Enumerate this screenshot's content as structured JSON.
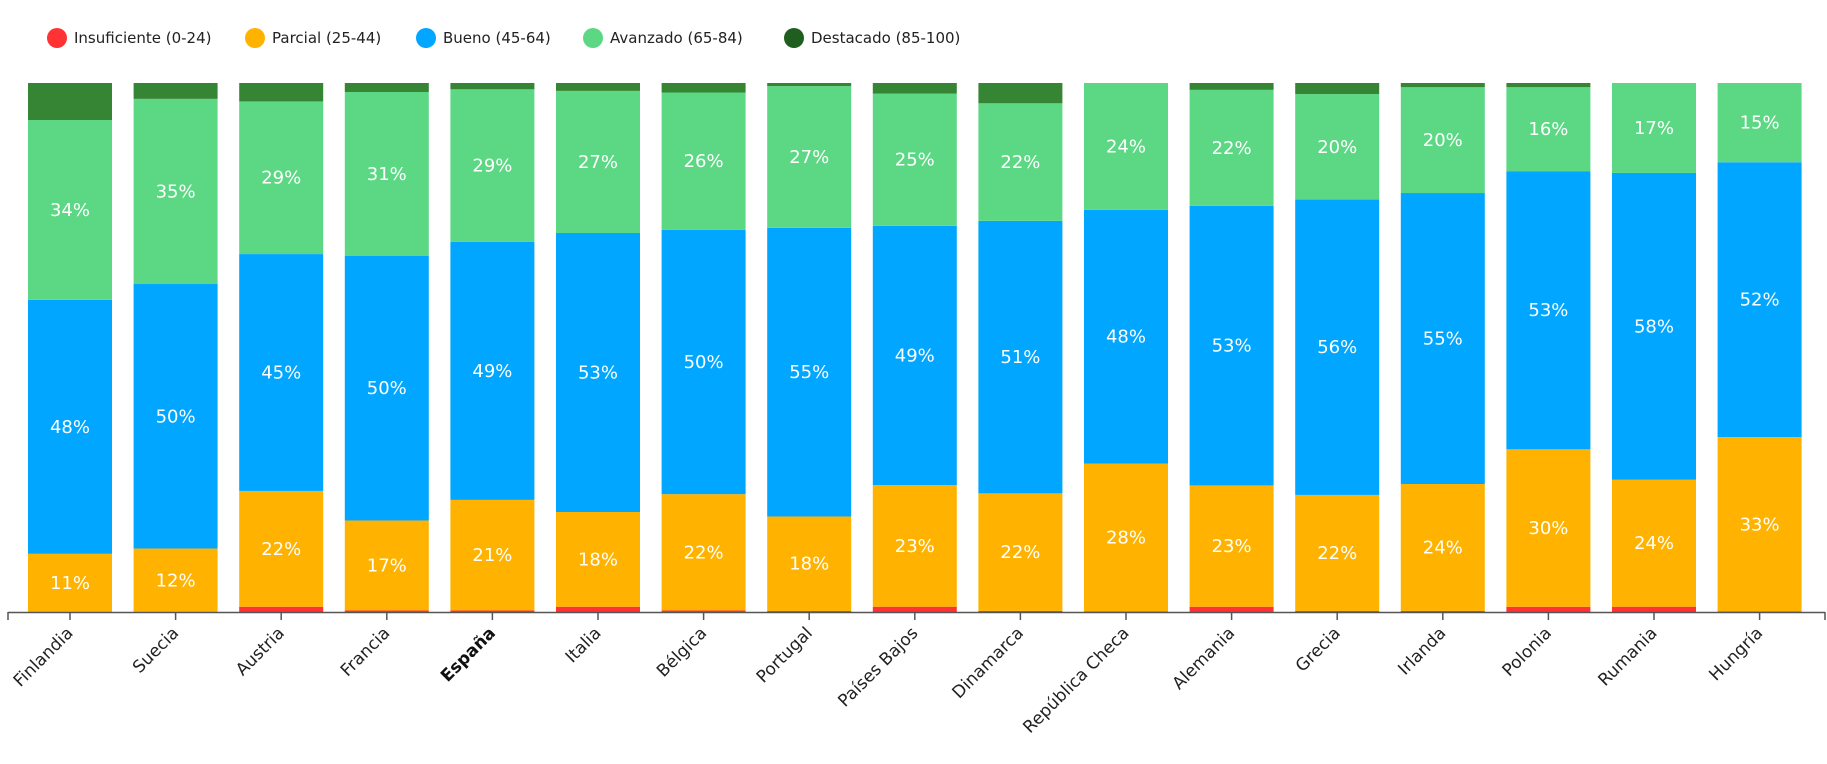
{
  "chart_data": {
    "type": "bar",
    "stacked": true,
    "normalized": true,
    "title": "",
    "xlabel": "",
    "ylabel": "",
    "ylim": [
      0,
      100
    ],
    "grid": false,
    "legend_position": "top-left",
    "highlighted_category": "España",
    "categories": [
      "Finlandia",
      "Suecia",
      "Austria",
      "Francia",
      "España",
      "Italia",
      "Bélgica",
      "Portugal",
      "Países Bajos",
      "Dinamarca",
      "República Checa",
      "Alemania",
      "Grecia",
      "Irlanda",
      "Polonia",
      "Rumania",
      "Hungría"
    ],
    "series": [
      {
        "name": "Insuficiente (0-24)",
        "color": "#ff3333",
        "values": [
          0,
          0,
          1,
          0.3,
          0.3,
          1,
          0.3,
          0.2,
          1,
          0.2,
          0.1,
          1,
          0.2,
          0.2,
          1,
          1,
          0.1
        ],
        "labels": [
          "",
          "",
          "",
          "",
          "",
          "",
          "",
          "",
          "",
          "",
          "",
          "",
          "",
          "",
          "",
          "",
          ""
        ]
      },
      {
        "name": "Parcial (25-44)",
        "color": "#ffb300",
        "values": [
          11,
          12,
          22,
          17,
          21,
          18,
          22,
          18,
          23,
          22,
          28,
          23,
          22,
          24,
          30,
          24,
          33
        ],
        "labels": [
          "11%",
          "12%",
          "22%",
          "17%",
          "21%",
          "18%",
          "22%",
          "18%",
          "23%",
          "22%",
          "28%",
          "23%",
          "22%",
          "24%",
          "30%",
          "24%",
          "33%"
        ]
      },
      {
        "name": "Bueno (45-64)",
        "color": "#00a6ff",
        "values": [
          48,
          50,
          45,
          50,
          49,
          53,
          50,
          55,
          49,
          51,
          48,
          53,
          56,
          55,
          53,
          58,
          52
        ],
        "labels": [
          "48%",
          "50%",
          "45%",
          "50%",
          "49%",
          "53%",
          "50%",
          "55%",
          "49%",
          "51%",
          "48%",
          "53%",
          "56%",
          "55%",
          "53%",
          "58%",
          "52%"
        ]
      },
      {
        "name": "Avanzado (65-84)",
        "color": "#5cd884",
        "values": [
          34,
          35,
          29,
          31,
          29,
          27,
          26,
          27,
          25,
          22,
          24,
          22,
          20,
          20,
          16,
          17,
          15
        ],
        "labels": [
          "34%",
          "35%",
          "29%",
          "31%",
          "29%",
          "27%",
          "26%",
          "27%",
          "25%",
          "22%",
          "24%",
          "22%",
          "20%",
          "20%",
          "16%",
          "17%",
          "15%"
        ]
      },
      {
        "name": "Destacado (85-100)",
        "color": "#368535",
        "legend_color": "#1f5e1f",
        "values": [
          7,
          3,
          3.5,
          1.7,
          1.2,
          1.5,
          1.8,
          0.6,
          2,
          3.8,
          0,
          1.3,
          2.1,
          0.8,
          0.8,
          0,
          0
        ],
        "labels": [
          "",
          "",
          "",
          "",
          "",
          "",
          "",
          "",
          "",
          "",
          "",
          "",
          "",
          "",
          "",
          "",
          ""
        ]
      }
    ]
  }
}
